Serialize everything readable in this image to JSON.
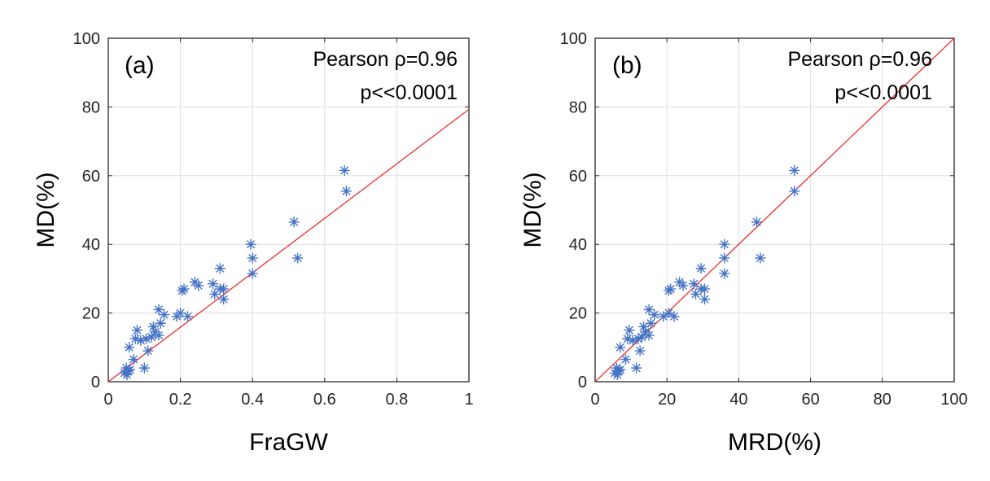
{
  "chart_data": [
    {
      "type": "scatter",
      "panel_label": "(a)",
      "xlabel": "FraGW",
      "ylabel": "MD(%)",
      "xlim": [
        0,
        1
      ],
      "ylim": [
        0,
        100
      ],
      "xticks": [
        "0",
        "0.2",
        "0.4",
        "0.6",
        "0.8",
        "1"
      ],
      "yticks": [
        "0",
        "20",
        "40",
        "60",
        "80",
        "100"
      ],
      "grid": true,
      "annotations": [
        "Pearson ρ=0.96",
        "p<<0.0001"
      ],
      "marker_color": "#4472C4",
      "fit_color": "#E8302E",
      "fit_line": [
        [
          0,
          0
        ],
        [
          1,
          79.3
        ]
      ],
      "points": [
        [
          0.045,
          2.5
        ],
        [
          0.05,
          4.0
        ],
        [
          0.052,
          2.0
        ],
        [
          0.055,
          3.2
        ],
        [
          0.06,
          3.5
        ],
        [
          0.058,
          10.0
        ],
        [
          0.07,
          6.5
        ],
        [
          0.075,
          12.5
        ],
        [
          0.08,
          15.0
        ],
        [
          0.09,
          12.0
        ],
        [
          0.1,
          4.0
        ],
        [
          0.105,
          12.5
        ],
        [
          0.11,
          9.0
        ],
        [
          0.12,
          13.0
        ],
        [
          0.125,
          16.0
        ],
        [
          0.13,
          14.5
        ],
        [
          0.14,
          13.5
        ],
        [
          0.145,
          17.0
        ],
        [
          0.14,
          21.0
        ],
        [
          0.155,
          19.5
        ],
        [
          0.19,
          19.0
        ],
        [
          0.2,
          20.0
        ],
        [
          0.205,
          26.5
        ],
        [
          0.21,
          27.0
        ],
        [
          0.22,
          19.0
        ],
        [
          0.24,
          29.0
        ],
        [
          0.25,
          28.0
        ],
        [
          0.29,
          28.5
        ],
        [
          0.295,
          25.5
        ],
        [
          0.31,
          27.0
        ],
        [
          0.31,
          33.0
        ],
        [
          0.32,
          27.0
        ],
        [
          0.32,
          24.0
        ],
        [
          0.395,
          40.0
        ],
        [
          0.4,
          36.0
        ],
        [
          0.4,
          31.5
        ],
        [
          0.515,
          46.5
        ],
        [
          0.525,
          36.0
        ],
        [
          0.655,
          61.5
        ],
        [
          0.66,
          55.5
        ]
      ]
    },
    {
      "type": "scatter",
      "panel_label": "(b)",
      "xlabel": "MRD(%)",
      "ylabel": "MD(%)",
      "xlim": [
        0,
        100
      ],
      "ylim": [
        0,
        100
      ],
      "xticks": [
        "0",
        "20",
        "40",
        "60",
        "80",
        "100"
      ],
      "yticks": [
        "0",
        "20",
        "40",
        "60",
        "80",
        "100"
      ],
      "grid": true,
      "annotations": [
        "Pearson ρ=0.96",
        "p<<0.0001"
      ],
      "marker_color": "#4472C4",
      "fit_color": "#E8302E",
      "fit_line": [
        [
          0,
          0
        ],
        [
          100,
          100
        ]
      ],
      "points": [
        [
          5.5,
          2.5
        ],
        [
          6.0,
          4.0
        ],
        [
          6.2,
          2.0
        ],
        [
          6.5,
          3.2
        ],
        [
          7.0,
          3.5
        ],
        [
          7.0,
          10.0
        ],
        [
          8.5,
          6.5
        ],
        [
          9.0,
          12.5
        ],
        [
          9.5,
          15.0
        ],
        [
          10.5,
          12.0
        ],
        [
          11.5,
          4.0
        ],
        [
          12.0,
          12.5
        ],
        [
          12.5,
          9.0
        ],
        [
          13.0,
          13.0
        ],
        [
          13.5,
          16.0
        ],
        [
          14.0,
          14.5
        ],
        [
          15.0,
          13.5
        ],
        [
          15.5,
          17.0
        ],
        [
          15.0,
          21.0
        ],
        [
          16.5,
          19.5
        ],
        [
          19.0,
          19.0
        ],
        [
          20.5,
          20.0
        ],
        [
          20.5,
          26.5
        ],
        [
          21.0,
          27.0
        ],
        [
          22.0,
          19.0
        ],
        [
          23.5,
          29.0
        ],
        [
          24.5,
          28.0
        ],
        [
          27.5,
          28.5
        ],
        [
          28.0,
          25.5
        ],
        [
          29.5,
          27.0
        ],
        [
          29.5,
          33.0
        ],
        [
          30.5,
          27.0
        ],
        [
          30.5,
          24.0
        ],
        [
          36.0,
          40.0
        ],
        [
          36.0,
          36.0
        ],
        [
          36.0,
          31.5
        ],
        [
          45.0,
          46.5
        ],
        [
          46.0,
          36.0
        ],
        [
          55.5,
          61.5
        ],
        [
          55.5,
          55.5
        ]
      ]
    }
  ]
}
